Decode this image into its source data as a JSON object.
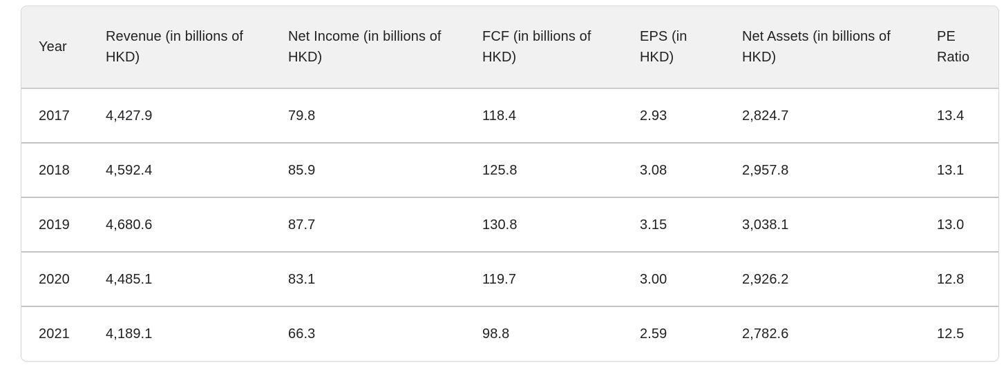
{
  "chart_data": {
    "type": "table",
    "columns": [
      "Year",
      "Revenue (in billions of HKD)",
      "Net Income (in billions of HKD)",
      "FCF (in billions of HKD)",
      "EPS (in HKD)",
      "Net Assets (in billions of HKD)",
      "PE Ratio"
    ],
    "rows": [
      [
        "2017",
        "4,427.9",
        "79.8",
        "118.4",
        "2.93",
        "2,824.7",
        "13.4"
      ],
      [
        "2018",
        "4,592.4",
        "85.9",
        "125.8",
        "3.08",
        "2,957.8",
        "13.1"
      ],
      [
        "2019",
        "4,680.6",
        "87.7",
        "130.8",
        "3.15",
        "3,038.1",
        "13.0"
      ],
      [
        "2020",
        "4,485.1",
        "83.1",
        "119.7",
        "3.00",
        "2,926.2",
        "12.8"
      ],
      [
        "2021",
        "4,189.1",
        "66.3",
        "98.8",
        "2.59",
        "2,782.6",
        "12.5"
      ]
    ]
  },
  "colors": {
    "header_background": "#f1f1f1",
    "row_divider": "#c3c3c3",
    "card_border": "#d8d8d8",
    "text": "#202124",
    "page_background": "#ffffff"
  }
}
